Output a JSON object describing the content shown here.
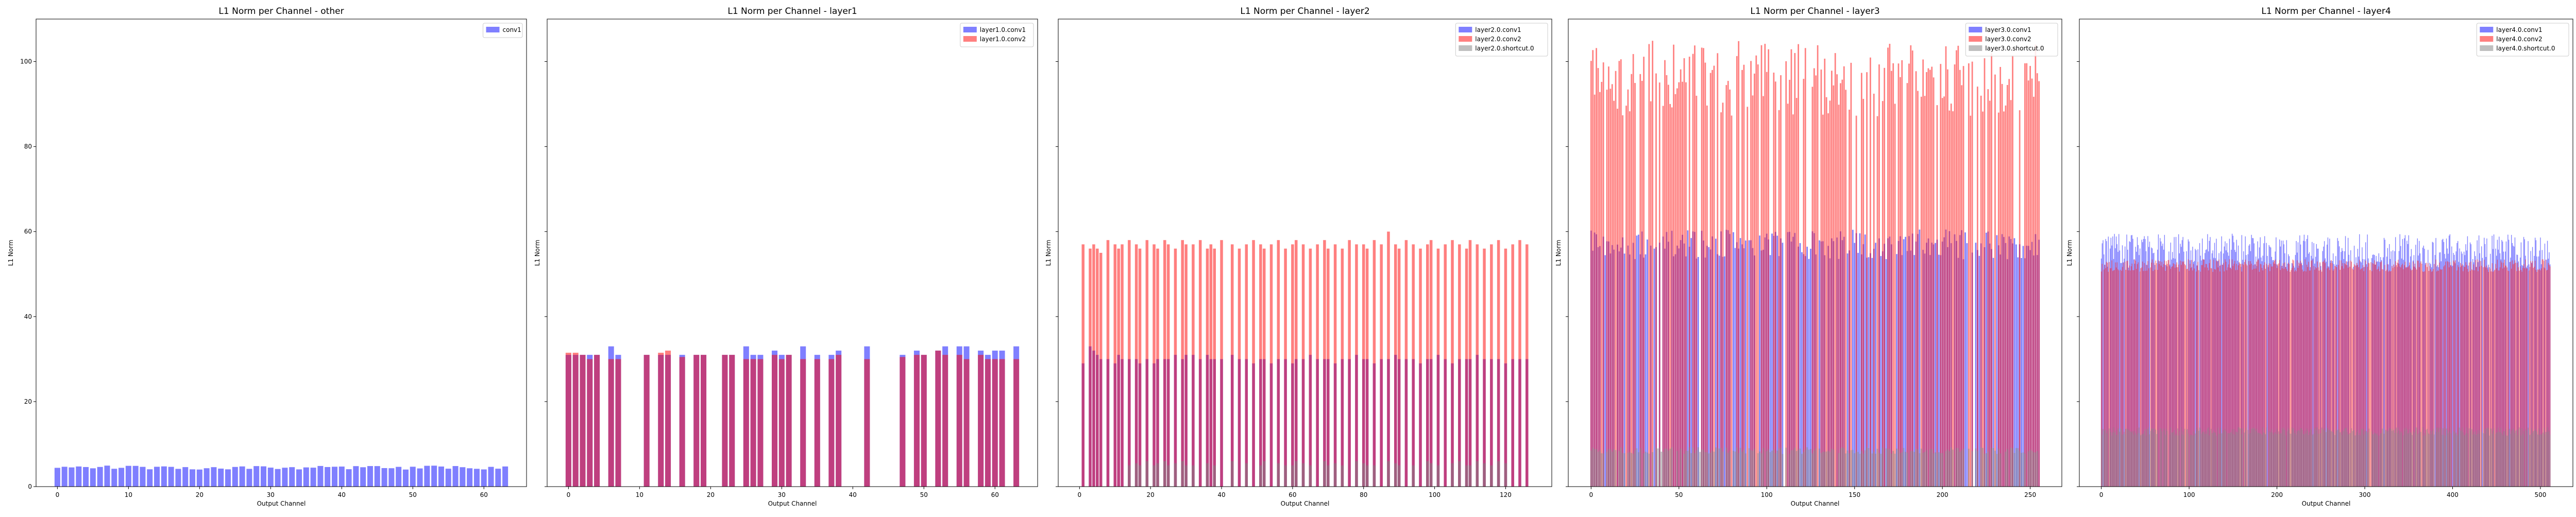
{
  "chart_data": [
    {
      "type": "bar",
      "title": "L1 Norm per Channel - other",
      "xlabel": "Output Channel",
      "ylabel": "L1 Norm",
      "ylim": [
        0,
        110
      ],
      "xlim": [
        -3,
        66
      ],
      "xticks": [
        0,
        10,
        20,
        30,
        40,
        50,
        60
      ],
      "yticks": [
        0,
        20,
        40,
        60,
        80,
        100
      ],
      "legend_position": "top-right",
      "bar_width": 0.8,
      "series": [
        {
          "name": "conv1",
          "color": "#0000ff",
          "opacity": 0.5,
          "mode": "dense",
          "count": 64,
          "base": 4.5,
          "amp": 0.5,
          "seed": 1
        }
      ]
    },
    {
      "type": "bar",
      "title": "L1 Norm per Channel - layer1",
      "xlabel": "Output Channel",
      "ylabel": "L1 Norm",
      "ylim": [
        0,
        110
      ],
      "xlim": [
        -3,
        66
      ],
      "xticks": [
        0,
        10,
        20,
        30,
        40,
        50,
        60
      ],
      "yticks": [
        0,
        20,
        40,
        60,
        80,
        100
      ],
      "legend_position": "top-right",
      "bar_width": 0.8,
      "series": [
        {
          "name": "layer1.0.conv1",
          "color": "#0000ff",
          "opacity": 0.5,
          "mode": "sparse",
          "x": [
            0,
            1,
            2,
            3,
            4,
            6,
            7,
            11,
            13,
            14,
            16,
            18,
            19,
            22,
            23,
            25,
            26,
            27,
            29,
            30,
            31,
            33,
            35,
            37,
            38,
            42,
            47,
            49,
            50,
            52,
            53,
            55,
            56,
            58,
            59,
            60,
            61,
            63
          ],
          "values": [
            31,
            31,
            31,
            31,
            31,
            33,
            31,
            31,
            31,
            31,
            31,
            31,
            31,
            31,
            31,
            33,
            31,
            31,
            32,
            31,
            31,
            33,
            31,
            31,
            32,
            33,
            31,
            32,
            31,
            32,
            33,
            33,
            33,
            32,
            31,
            32,
            32,
            33
          ]
        },
        {
          "name": "layer1.0.conv2",
          "color": "#ff0000",
          "opacity": 0.5,
          "mode": "sparse",
          "x": [
            0,
            1,
            2,
            3,
            4,
            6,
            7,
            11,
            13,
            14,
            16,
            18,
            19,
            22,
            23,
            25,
            26,
            27,
            29,
            30,
            31,
            33,
            35,
            37,
            38,
            42,
            47,
            49,
            50,
            52,
            53,
            55,
            56,
            58,
            59,
            60,
            61,
            63
          ],
          "values": [
            31.5,
            31.5,
            31,
            30,
            31,
            30,
            30,
            31,
            31.5,
            32,
            30.5,
            31,
            31,
            31,
            31,
            30,
            30,
            30,
            31,
            30,
            31,
            30,
            30,
            30,
            31,
            30,
            30.5,
            31,
            31,
            32,
            31,
            31,
            30,
            31,
            30,
            30,
            30,
            30
          ]
        }
      ]
    },
    {
      "type": "bar",
      "title": "L1 Norm per Channel - layer2",
      "xlabel": "Output Channel",
      "ylabel": "L1 Norm",
      "ylim": [
        0,
        110
      ],
      "xlim": [
        -6,
        133
      ],
      "xticks": [
        0,
        20,
        40,
        60,
        80,
        100,
        120
      ],
      "yticks": [
        0,
        20,
        40,
        60,
        80,
        100
      ],
      "legend_position": "top-right",
      "bar_width": 0.8,
      "series": [
        {
          "name": "layer2.0.conv1",
          "color": "#0000ff",
          "opacity": 0.5,
          "mode": "sparse",
          "x": [
            1,
            3,
            4,
            5,
            6,
            8,
            10,
            11,
            12,
            14,
            16,
            17,
            19,
            21,
            22,
            24,
            25,
            27,
            29,
            30,
            32,
            34,
            36,
            37,
            38,
            40,
            43,
            45,
            47,
            49,
            51,
            52,
            54,
            56,
            58,
            60,
            61,
            63,
            65,
            67,
            69,
            70,
            72,
            74,
            76,
            78,
            80,
            81,
            83,
            85,
            87,
            89,
            90,
            92,
            94,
            96,
            98,
            99,
            101,
            103,
            105,
            107,
            109,
            110,
            112,
            114,
            116,
            118,
            120,
            122,
            124,
            126
          ],
          "values": [
            29,
            33,
            32,
            31,
            30,
            30,
            29,
            31,
            30,
            30,
            30,
            29,
            30,
            29,
            30,
            30,
            30,
            31,
            30,
            31,
            31,
            30,
            31,
            30,
            30,
            30,
            31,
            30,
            30,
            29,
            30,
            30,
            29,
            30,
            30,
            29,
            30,
            30,
            31,
            30,
            30,
            30,
            29,
            30,
            30,
            31,
            30,
            30,
            29,
            30,
            30,
            31,
            30,
            30,
            30,
            29,
            30,
            30,
            31,
            30,
            29,
            30,
            30,
            30,
            31,
            30,
            30,
            30,
            29,
            30,
            30,
            30
          ]
        },
        {
          "name": "layer2.0.conv2",
          "color": "#ff0000",
          "opacity": 0.5,
          "mode": "sparse",
          "x": [
            1,
            3,
            4,
            5,
            6,
            8,
            10,
            11,
            12,
            14,
            16,
            17,
            19,
            21,
            22,
            24,
            25,
            27,
            29,
            30,
            32,
            34,
            36,
            37,
            38,
            40,
            43,
            45,
            47,
            49,
            51,
            52,
            54,
            56,
            58,
            60,
            61,
            63,
            65,
            67,
            69,
            70,
            72,
            74,
            76,
            78,
            80,
            81,
            83,
            85,
            87,
            89,
            90,
            92,
            94,
            96,
            98,
            99,
            101,
            103,
            105,
            107,
            109,
            110,
            112,
            114,
            116,
            118,
            120,
            122,
            124,
            126
          ],
          "values": [
            57,
            56,
            57,
            56,
            55,
            58,
            57,
            56,
            57,
            58,
            57,
            56,
            58,
            57,
            56,
            58,
            57,
            56,
            58,
            57,
            57,
            58,
            56,
            57,
            56,
            58,
            57,
            56,
            57,
            58,
            57,
            56,
            57,
            58,
            56,
            57,
            58,
            57,
            56,
            57,
            58,
            56,
            57,
            56,
            58,
            57,
            57,
            56,
            58,
            57,
            60,
            57,
            56,
            58,
            57,
            56,
            57,
            58,
            56,
            57,
            58,
            57,
            56,
            58,
            57,
            56,
            57,
            58,
            56,
            57,
            58,
            57
          ]
        },
        {
          "name": "layer2.0.shortcut.0",
          "color": "#808080",
          "opacity": 0.5,
          "mode": "sparse",
          "x": [
            14,
            16,
            17,
            19,
            21,
            22,
            24,
            25,
            27,
            29,
            30,
            32,
            36,
            38,
            43,
            47,
            51,
            52,
            56,
            58,
            60,
            61,
            63,
            65,
            69,
            70,
            72,
            74,
            78,
            80,
            81,
            83,
            87,
            89,
            90,
            94,
            98,
            99,
            101,
            105,
            107,
            109,
            110,
            112,
            114,
            116,
            118,
            120
          ],
          "values": [
            5,
            5.5,
            5,
            6,
            5,
            5.5,
            6,
            5,
            5.5,
            6,
            5,
            5,
            5.5,
            5,
            6,
            5.5,
            5,
            6,
            5.5,
            5,
            5,
            6,
            5.5,
            5,
            6,
            5,
            5.5,
            5,
            6,
            5.5,
            5,
            5,
            6,
            5.5,
            5,
            5,
            6,
            5.5,
            5,
            5.5,
            6,
            5,
            5,
            6,
            5.5,
            5,
            6,
            5.5
          ]
        }
      ]
    },
    {
      "type": "bar",
      "title": "L1 Norm per Channel - layer3",
      "xlabel": "Output Channel",
      "ylabel": "L1 Norm",
      "ylim": [
        0,
        110
      ],
      "xlim": [
        -13,
        268
      ],
      "xticks": [
        0,
        50,
        100,
        150,
        200,
        250
      ],
      "yticks": [
        0,
        20,
        40,
        60,
        80,
        100
      ],
      "legend_position": "top-right",
      "bar_width": 0.8,
      "series": [
        {
          "name": "layer3.0.conv1",
          "color": "#0000ff",
          "opacity": 0.5,
          "mode": "dense",
          "count": 256,
          "base": 57,
          "amp": 3.5,
          "fill": 0.9,
          "seed": 3
        },
        {
          "name": "layer3.0.conv2",
          "color": "#ff0000",
          "opacity": 0.5,
          "mode": "dense",
          "count": 256,
          "base": 96,
          "amp": 9,
          "fill": 0.75,
          "seed": 4
        },
        {
          "name": "layer3.0.shortcut.0",
          "color": "#808080",
          "opacity": 0.5,
          "mode": "dense",
          "count": 256,
          "base": 8.5,
          "amp": 0.8,
          "fill": 0.85,
          "seed": 5
        }
      ]
    },
    {
      "type": "bar",
      "title": "L1 Norm per Channel - layer4",
      "xlabel": "Output Channel",
      "ylabel": "L1 Norm",
      "ylim": [
        0,
        110
      ],
      "xlim": [
        -25,
        537
      ],
      "xticks": [
        0,
        100,
        200,
        300,
        400,
        500
      ],
      "yticks": [
        0,
        20,
        40,
        60,
        80,
        100
      ],
      "legend_position": "top-right",
      "bar_width": 0.8,
      "series": [
        {
          "name": "layer4.0.conv1",
          "color": "#0000ff",
          "opacity": 0.5,
          "mode": "dense",
          "count": 512,
          "base": 55.5,
          "amp": 4,
          "fill": 0.9,
          "seed": 6
        },
        {
          "name": "layer4.0.conv2",
          "color": "#ff0000",
          "opacity": 0.5,
          "mode": "dense",
          "count": 512,
          "base": 52,
          "amp": 1.5,
          "fill": 0.95,
          "seed": 7
        },
        {
          "name": "layer4.0.shortcut.0",
          "color": "#808080",
          "opacity": 0.5,
          "mode": "dense",
          "count": 512,
          "base": 13,
          "amp": 1,
          "fill": 0.95,
          "seed": 8
        }
      ]
    }
  ]
}
